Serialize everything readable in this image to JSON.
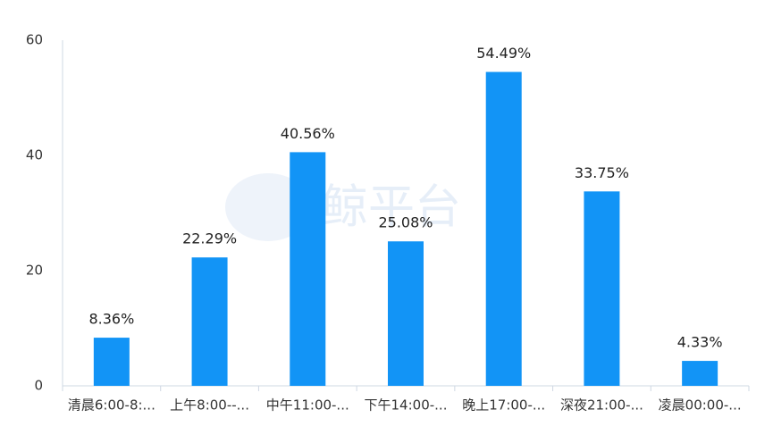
{
  "chart_data": {
    "type": "bar",
    "watermark": "鲸平台",
    "categories": [
      "清晨6:00-8:...",
      "上午8:00--...",
      "中午11:00-...",
      "下午14:00-...",
      "晚上17:00-...",
      "深夜21:00-...",
      "凌晨00:00-..."
    ],
    "values": [
      8.36,
      22.29,
      40.56,
      25.08,
      54.49,
      33.75,
      4.33
    ],
    "value_labels": [
      "8.36%",
      "22.29%",
      "40.56%",
      "25.08%",
      "54.49%",
      "33.75%",
      "4.33%"
    ],
    "color": "#1294f6",
    "ylim": [
      0,
      60
    ],
    "yticks": [
      0,
      20,
      40,
      60
    ],
    "grid": false
  }
}
